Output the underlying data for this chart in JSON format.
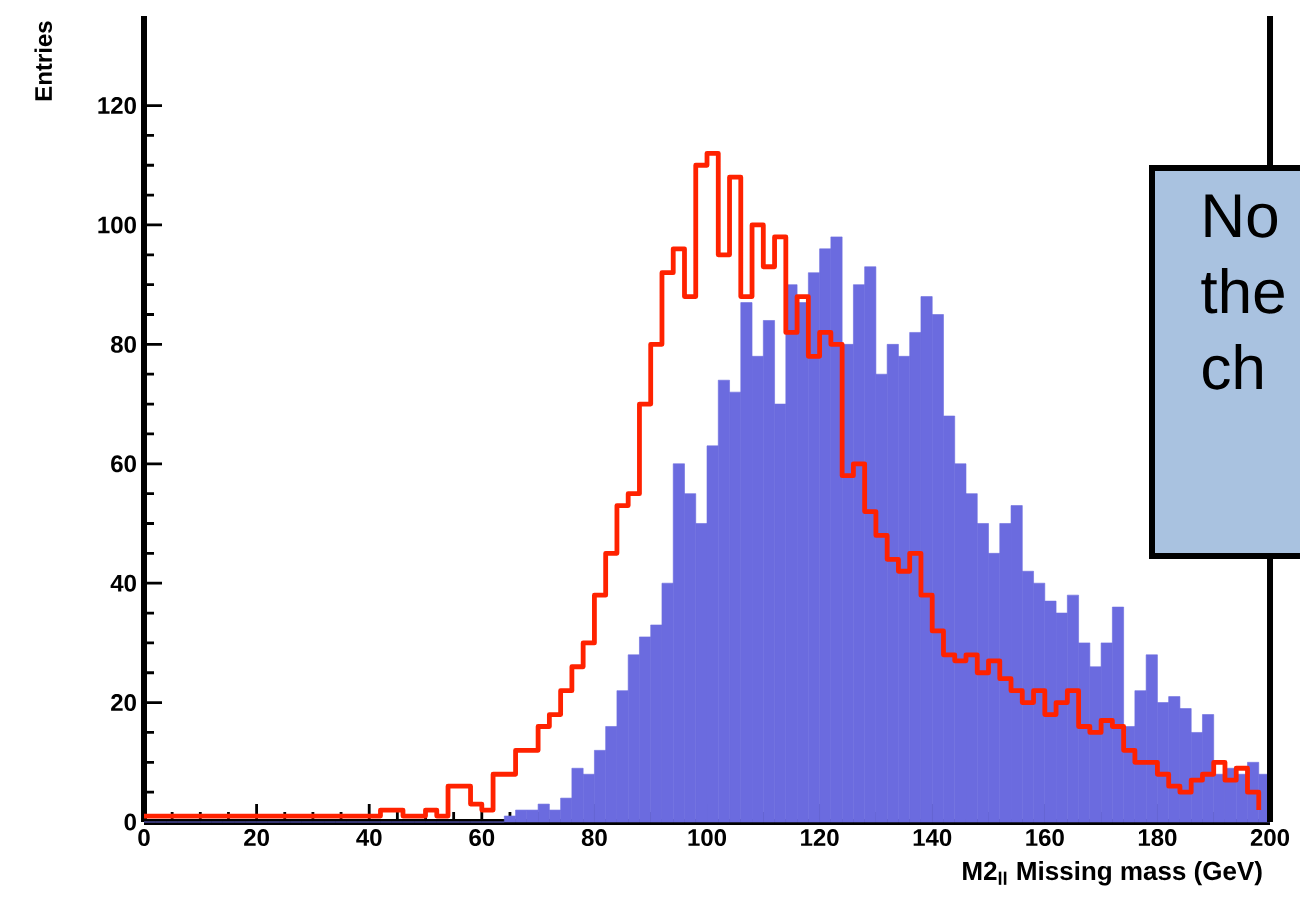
{
  "chart_data": {
    "type": "histogram",
    "xlabel": "M2$_{ll}$ Missing mass (GeV)",
    "ylabel": "Entries",
    "bins": [
      0,
      2,
      4,
      6,
      8,
      10,
      12,
      14,
      16,
      18,
      20,
      22,
      24,
      26,
      28,
      30,
      32,
      34,
      36,
      38,
      40,
      42,
      44,
      46,
      48,
      50,
      52,
      54,
      56,
      58,
      60,
      62,
      64,
      66,
      68,
      70,
      72,
      74,
      76,
      78,
      80,
      82,
      84,
      86,
      88,
      90,
      92,
      94,
      96,
      98,
      100,
      102,
      104,
      106,
      108,
      110,
      112,
      114,
      116,
      118,
      120,
      122,
      124,
      126,
      128,
      130,
      132,
      134,
      136,
      138,
      140,
      142,
      144,
      146,
      148,
      150,
      152,
      154,
      156,
      158,
      160,
      162,
      164,
      166,
      168,
      170,
      172,
      174,
      176,
      178,
      180,
      182,
      184,
      186,
      188,
      190,
      192,
      194,
      196,
      198,
      200
    ],
    "series": [
      {
        "color": "#6b6bdf",
        "values": [
          0,
          0,
          0,
          0,
          0,
          0,
          0,
          0,
          0,
          0,
          0,
          0,
          0,
          0,
          0,
          0,
          0,
          0,
          0,
          0,
          0,
          0,
          0,
          0,
          0,
          0,
          0,
          0,
          0,
          0,
          0,
          0,
          1,
          2,
          2,
          3,
          2,
          4,
          9,
          8,
          12,
          16,
          22,
          28,
          31,
          33,
          40,
          60,
          55,
          50,
          63,
          74,
          72,
          87,
          78,
          84,
          70,
          90,
          87,
          92,
          96,
          98,
          80,
          90,
          93,
          75,
          80,
          78,
          82,
          88,
          85,
          68,
          60,
          55,
          50,
          45,
          50,
          53,
          42,
          40,
          37,
          35,
          38,
          30,
          26,
          30,
          36,
          16,
          22,
          28,
          20,
          21,
          19,
          15,
          18,
          8,
          9,
          8,
          10,
          8
        ]
      },
      {
        "type": "step",
        "color": "#ff2200",
        "x": [
          0,
          2,
          4,
          6,
          8,
          10,
          12,
          14,
          16,
          18,
          20,
          22,
          24,
          26,
          28,
          30,
          32,
          34,
          36,
          38,
          40,
          42,
          44,
          46,
          48,
          50,
          52,
          54,
          56,
          58,
          60,
          62,
          64,
          66,
          68,
          70,
          72,
          74,
          76,
          78,
          80,
          82,
          84,
          86,
          88,
          90,
          92,
          94,
          96,
          98,
          100,
          102,
          104,
          106,
          108,
          110,
          112,
          114,
          116,
          118,
          120,
          122,
          124,
          126,
          128,
          130,
          132,
          134,
          136,
          138,
          140,
          142,
          144,
          146,
          148,
          150,
          152,
          154,
          156,
          158,
          160,
          162,
          164,
          166,
          168,
          170,
          172,
          174,
          176,
          178,
          180,
          182,
          184,
          186,
          188,
          190,
          192,
          194,
          196,
          198
        ],
        "values": [
          1,
          1,
          1,
          1,
          1,
          1,
          1,
          1,
          1,
          1,
          1,
          1,
          1,
          1,
          1,
          1,
          1,
          1,
          1,
          1,
          1,
          2,
          2,
          1,
          1,
          2,
          1,
          6,
          6,
          3,
          2,
          8,
          8,
          12,
          12,
          16,
          18,
          22,
          26,
          30,
          38,
          45,
          53,
          55,
          70,
          80,
          92,
          96,
          88,
          110,
          112,
          95,
          108,
          88,
          100,
          93,
          98,
          82,
          88,
          78,
          82,
          80,
          58,
          60,
          52,
          48,
          44,
          42,
          45,
          38,
          32,
          28,
          27,
          28,
          25,
          27,
          24,
          22,
          20,
          22,
          18,
          20,
          22,
          16,
          15,
          17,
          16,
          12,
          10,
          10,
          8,
          6,
          5,
          7,
          8,
          10,
          7,
          9,
          5,
          2
        ]
      }
    ],
    "xlim": [
      0,
      200
    ],
    "ylim": [
      0,
      135
    ],
    "xticks": [
      0,
      20,
      40,
      60,
      80,
      100,
      120,
      140,
      160,
      180,
      200
    ],
    "yticks": [
      0,
      20,
      40,
      60,
      80,
      100,
      120
    ],
    "annotations": [
      "No",
      "the",
      "ch"
    ]
  }
}
